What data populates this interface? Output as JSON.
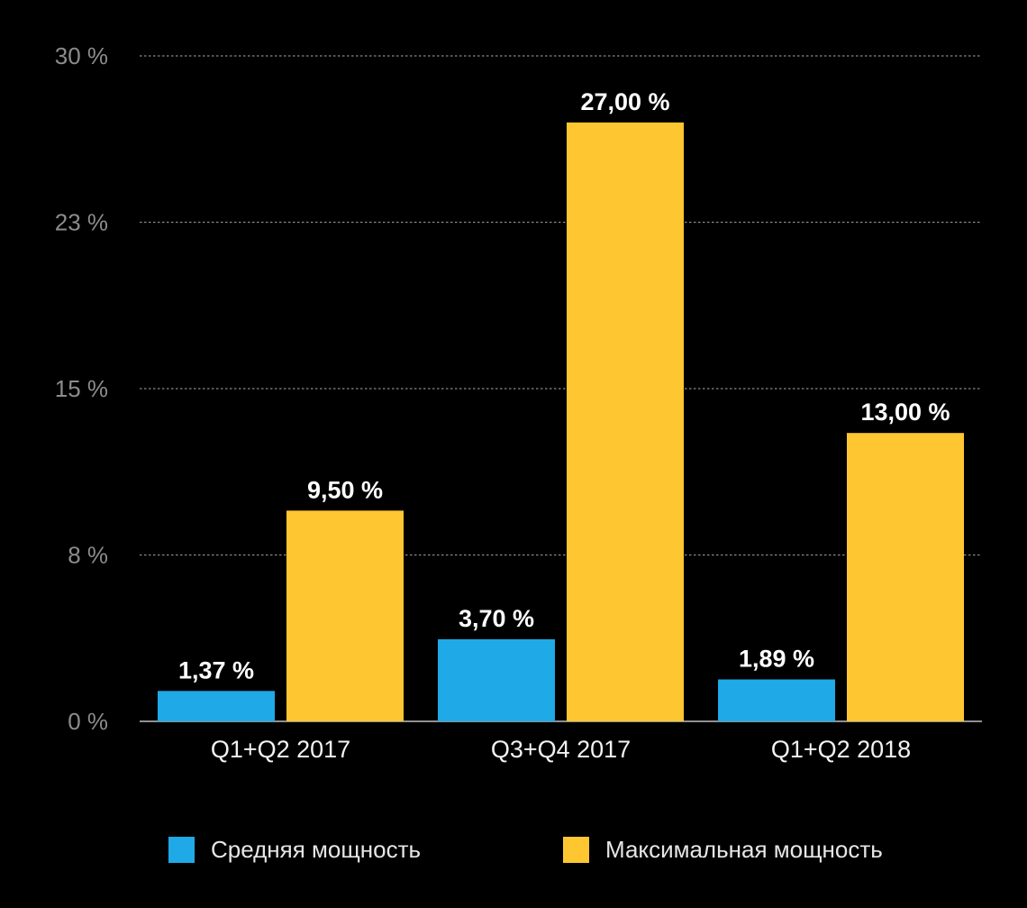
{
  "chart_data": {
    "type": "bar",
    "categories": [
      "Q1+Q2 2017",
      "Q3+Q4 2017",
      "Q1+Q2 2018"
    ],
    "series": [
      {
        "name": "Средняя мощность",
        "values": [
          1.37,
          3.7,
          1.89
        ],
        "labels": [
          "1,37 %",
          "3,70 %",
          "1,89 %"
        ],
        "color": "#1fa9e6"
      },
      {
        "name": "Максимальная мощность",
        "values": [
          9.5,
          27.0,
          13.0
        ],
        "labels": [
          "9,50 %",
          "27,00 %",
          "13,00 %"
        ],
        "color": "#fec631"
      }
    ],
    "y_ticks": [
      {
        "value": 0,
        "label": "0 %"
      },
      {
        "value": 7.5,
        "label": "8 %"
      },
      {
        "value": 15,
        "label": "15 %"
      },
      {
        "value": 22.5,
        "label": "23 %"
      },
      {
        "value": 30,
        "label": "30 %"
      }
    ],
    "ylim": [
      0,
      30
    ],
    "grid": true,
    "legend_position": "bottom",
    "colors": {
      "background": "#000000",
      "gridline": "#8a8a8a",
      "axis": "#bfbfbf",
      "tick_label": "#8c8c8c",
      "category_label": "#f2f2f2",
      "value_label": "#ffffff"
    }
  }
}
